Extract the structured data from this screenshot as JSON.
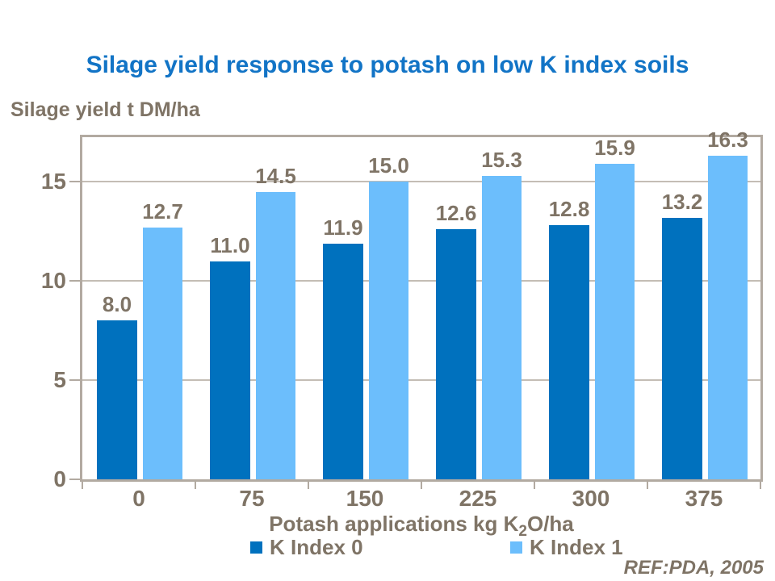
{
  "title": {
    "text": "Silage yield response to potash on low K index soils",
    "color": "#1274C6"
  },
  "y_axis_unit_label": "Silage yield t DM/ha",
  "x_axis": {
    "title_prefix": "Potash applications kg K",
    "title_sub": "2",
    "title_suffix": "O/ha"
  },
  "ref_note": "REF:PDA, 2005",
  "colors": {
    "title_blue": "#1274C6",
    "text_brown_gray": "#7F7466",
    "axis_border": "#B2AAA1",
    "gridline": "#C4BDB5",
    "series_dark_blue": "#0071BE",
    "series_light_blue": "#6CBEFC",
    "background": "#FFFFFF"
  },
  "chart_data": {
    "type": "bar",
    "title": "Silage yield response to potash on low K index soils",
    "xlabel": "Potash applications kg K2O/ha",
    "ylabel": "Silage yield t DM/ha",
    "categories": [
      "0",
      "75",
      "150",
      "225",
      "300",
      "375"
    ],
    "series": [
      {
        "name": "K Index 0",
        "color": "#0071BE",
        "values": [
          8.0,
          11.0,
          11.9,
          12.6,
          12.8,
          13.2
        ],
        "labels": [
          "8.0",
          "11.0",
          "11.9",
          "12.6",
          "12.8",
          "13.2"
        ]
      },
      {
        "name": "K Index 1",
        "color": "#6CBEFC",
        "values": [
          12.7,
          14.5,
          15.0,
          15.3,
          15.9,
          16.3
        ],
        "labels": [
          "12.7",
          "14.5",
          "15.0",
          "15.3",
          "15.9",
          "16.3"
        ]
      }
    ],
    "ylim": [
      0,
      17.25
    ],
    "yticks": [
      0,
      5,
      10,
      15
    ],
    "grid": true,
    "legend_position": "bottom",
    "annotation": "REF:PDA, 2005"
  }
}
